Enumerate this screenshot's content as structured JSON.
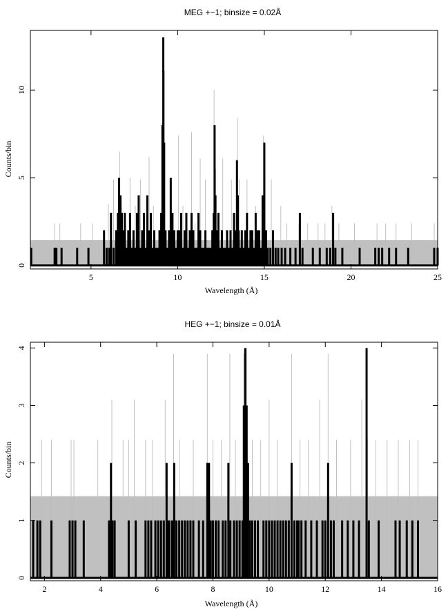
{
  "chart_data": [
    {
      "type": "line",
      "title": "MEG +−1; binsize = 0.02Å",
      "xlabel": "Wavelength (Å)",
      "ylabel": "Counts/bin",
      "xlim": [
        1.5,
        25
      ],
      "ylim": [
        -0.2,
        13.4
      ],
      "xticks": [
        5,
        10,
        15,
        20,
        25
      ],
      "xtick_labels": [
        "5",
        "10",
        "15",
        "20",
        "25"
      ],
      "yticks": [
        0,
        5,
        10
      ],
      "ytick_labels": [
        "0",
        "5",
        "10"
      ],
      "grid": false,
      "background_band": {
        "y0": 0.0,
        "y1": 1.45,
        "color": "#bdbdbd"
      },
      "series": [
        {
          "style": "histogram-step",
          "color": "#000000",
          "x": [
            1.55,
            2.9,
            3.0,
            3.3,
            4.2,
            4.85,
            5.75,
            5.9,
            6.05,
            6.15,
            6.3,
            6.45,
            6.55,
            6.62,
            6.7,
            6.78,
            6.86,
            6.95,
            7.05,
            7.15,
            7.25,
            7.35,
            7.45,
            7.55,
            7.65,
            7.75,
            7.85,
            7.95,
            8.05,
            8.15,
            8.25,
            8.35,
            8.45,
            8.55,
            8.65,
            8.75,
            8.85,
            8.95,
            9.05,
            9.12,
            9.17,
            9.22,
            9.3,
            9.4,
            9.5,
            9.6,
            9.7,
            9.8,
            9.9,
            10.0,
            10.1,
            10.2,
            10.3,
            10.4,
            10.5,
            10.6,
            10.7,
            10.8,
            10.9,
            11.0,
            11.1,
            11.2,
            11.3,
            11.4,
            11.5,
            11.6,
            11.7,
            11.8,
            11.9,
            12.0,
            12.08,
            12.13,
            12.18,
            12.25,
            12.35,
            12.45,
            12.55,
            12.65,
            12.75,
            12.85,
            12.95,
            13.05,
            13.15,
            13.25,
            13.35,
            13.42,
            13.47,
            13.52,
            13.6,
            13.7,
            13.8,
            13.9,
            14.0,
            14.1,
            14.2,
            14.3,
            14.4,
            14.5,
            14.6,
            14.7,
            14.8,
            14.9,
            15.0,
            15.1,
            15.2,
            15.35,
            15.5,
            15.65,
            15.8,
            16.0,
            16.2,
            16.5,
            16.8,
            17.05,
            17.2,
            17.8,
            18.2,
            18.6,
            18.8,
            18.97,
            19.1,
            19.5,
            20.5,
            21.4,
            21.6,
            21.8,
            22.2,
            22.6,
            23.3,
            24.8,
            25.0
          ],
          "y": [
            1,
            1,
            1,
            1,
            1,
            1,
            2,
            1,
            1,
            3,
            1,
            2,
            3,
            5,
            4,
            3,
            2,
            3,
            1,
            2,
            3,
            1,
            2,
            1,
            3,
            4,
            1,
            2,
            3,
            1,
            4,
            2,
            3,
            1,
            2,
            1,
            1,
            2,
            3,
            8,
            13,
            7,
            2,
            1,
            2,
            5,
            3,
            2,
            1,
            2,
            2,
            3,
            1,
            2,
            3,
            1,
            2,
            3,
            2,
            1,
            1,
            3,
            2,
            1,
            1,
            2,
            1,
            1,
            1,
            2,
            3,
            8,
            4,
            2,
            3,
            1,
            2,
            1,
            1,
            2,
            1,
            2,
            1,
            3,
            2,
            6,
            4,
            2,
            1,
            2,
            1,
            2,
            3,
            1,
            2,
            2,
            1,
            3,
            2,
            2,
            1,
            4,
            7,
            2,
            1,
            1,
            2,
            1,
            1,
            1,
            1,
            1,
            1,
            3,
            1,
            1,
            1,
            1,
            1,
            3,
            1,
            1,
            1,
            1,
            1,
            1,
            1,
            1,
            1,
            1,
            1
          ]
        },
        {
          "style": "histogram-step",
          "color": "#c0c0c0",
          "x": [
            2.9,
            3.2,
            4.4,
            5.1,
            6.0,
            6.3,
            6.65,
            6.75,
            7.0,
            7.25,
            7.55,
            7.85,
            8.1,
            8.35,
            8.6,
            9.15,
            9.25,
            9.6,
            10.05,
            10.3,
            10.8,
            11.0,
            11.3,
            11.6,
            12.1,
            12.2,
            12.6,
            13.1,
            13.45,
            13.55,
            14.0,
            14.5,
            14.95,
            15.4,
            15.95,
            16.3,
            17.0,
            17.5,
            18.1,
            18.5,
            18.9,
            19.3,
            20.2,
            21.5,
            22.0,
            22.6,
            23.5,
            24.8
          ],
          "y": [
            2.4,
            2.4,
            2.4,
            2.4,
            3.5,
            4.9,
            6.5,
            3.4,
            2.4,
            5.0,
            3.4,
            4.9,
            2.4,
            6.2,
            3.4,
            12.3,
            11.1,
            3.4,
            7.4,
            3.4,
            7.6,
            2.4,
            6.1,
            4.9,
            10.0,
            5.5,
            6.1,
            4.9,
            8.4,
            4.9,
            4.9,
            3.4,
            7.4,
            4.9,
            3.4,
            2.4,
            2.4,
            2.4,
            2.4,
            2.4,
            3.4,
            2.4,
            2.4,
            2.4,
            2.4,
            2.4,
            2.4,
            2.4
          ]
        }
      ]
    },
    {
      "type": "line",
      "title": "HEG +−1; binsize = 0.01Å",
      "xlabel": "Wavelength (Å)",
      "ylabel": "Counts/bin",
      "xlim": [
        1.5,
        16
      ],
      "ylim": [
        -0.05,
        4.1
      ],
      "xticks": [
        2,
        4,
        6,
        8,
        10,
        12,
        14,
        16
      ],
      "xtick_labels": [
        "2",
        "4",
        "6",
        "8",
        "10",
        "12",
        "14",
        "16"
      ],
      "yticks": [
        0,
        1,
        2,
        3,
        4
      ],
      "ytick_labels": [
        "0",
        "1",
        "2",
        "3",
        "4"
      ],
      "grid": false,
      "background_band": {
        "y0": 0.0,
        "y1": 1.42,
        "color": "#bdbdbd"
      },
      "series": [
        {
          "style": "histogram-step",
          "color": "#000000",
          "x": [
            1.6,
            1.75,
            1.85,
            2.25,
            2.9,
            3.0,
            3.1,
            3.4,
            4.3,
            4.37,
            4.42,
            4.5,
            5.0,
            5.25,
            5.6,
            5.7,
            5.8,
            5.95,
            6.05,
            6.15,
            6.25,
            6.35,
            6.4,
            6.45,
            6.55,
            6.62,
            6.7,
            6.8,
            6.9,
            7.0,
            7.1,
            7.2,
            7.3,
            7.5,
            7.65,
            7.8,
            7.86,
            7.92,
            8.0,
            8.1,
            8.2,
            8.35,
            8.45,
            8.55,
            8.62,
            8.75,
            8.85,
            8.95,
            9.05,
            9.1,
            9.15,
            9.2,
            9.25,
            9.32,
            9.4,
            9.5,
            9.6,
            9.8,
            9.9,
            10.0,
            10.1,
            10.2,
            10.3,
            10.4,
            10.5,
            10.6,
            10.7,
            10.8,
            10.9,
            11.0,
            11.05,
            11.15,
            11.3,
            11.5,
            11.7,
            11.9,
            12.0,
            12.1,
            12.2,
            12.3,
            12.6,
            12.8,
            13.0,
            13.2,
            13.47,
            13.55,
            13.9,
            14.5,
            14.65,
            14.9,
            15.1,
            15.3
          ],
          "y": [
            1,
            1,
            1,
            1,
            1,
            1,
            1,
            1,
            1,
            2,
            1,
            1,
            1,
            1,
            1,
            1,
            1,
            1,
            1,
            1,
            1,
            2,
            1,
            1,
            1,
            2,
            1,
            1,
            1,
            1,
            1,
            1,
            1,
            1,
            1,
            2,
            2,
            1,
            1,
            1,
            1,
            1,
            1,
            2,
            1,
            1,
            1,
            1,
            1,
            3,
            4,
            3,
            2,
            1,
            1,
            1,
            1,
            1,
            1,
            1,
            1,
            1,
            1,
            1,
            1,
            1,
            1,
            2,
            1,
            1,
            1,
            1,
            1,
            1,
            1,
            1,
            1,
            2,
            1,
            1,
            1,
            1,
            1,
            1,
            4,
            1,
            1,
            1,
            1,
            1,
            1,
            1
          ]
        },
        {
          "style": "histogram-step",
          "color": "#c0c0c0",
          "x": [
            1.9,
            2.25,
            2.95,
            3.05,
            3.9,
            4.4,
            4.8,
            5.0,
            5.2,
            5.6,
            5.85,
            6.3,
            6.6,
            6.8,
            7.3,
            7.8,
            8.0,
            8.3,
            8.6,
            8.8,
            9.1,
            9.2,
            9.4,
            9.7,
            10.0,
            10.3,
            10.8,
            11.1,
            11.4,
            11.8,
            12.1,
            12.4,
            12.9,
            13.3,
            13.5,
            13.8,
            14.2,
            14.6,
            15.0,
            15.3
          ],
          "y": [
            2.4,
            2.4,
            2.4,
            2.4,
            2.4,
            3.1,
            2.4,
            2.4,
            3.1,
            2.4,
            2.4,
            3.1,
            3.9,
            2.4,
            2.4,
            3.9,
            2.4,
            2.4,
            3.9,
            2.4,
            3.9,
            4.0,
            2.4,
            2.4,
            3.1,
            2.4,
            3.9,
            2.4,
            2.4,
            3.1,
            3.9,
            2.4,
            2.4,
            3.1,
            2.4,
            2.4,
            2.4,
            2.4,
            2.4,
            2.4
          ]
        }
      ]
    }
  ]
}
